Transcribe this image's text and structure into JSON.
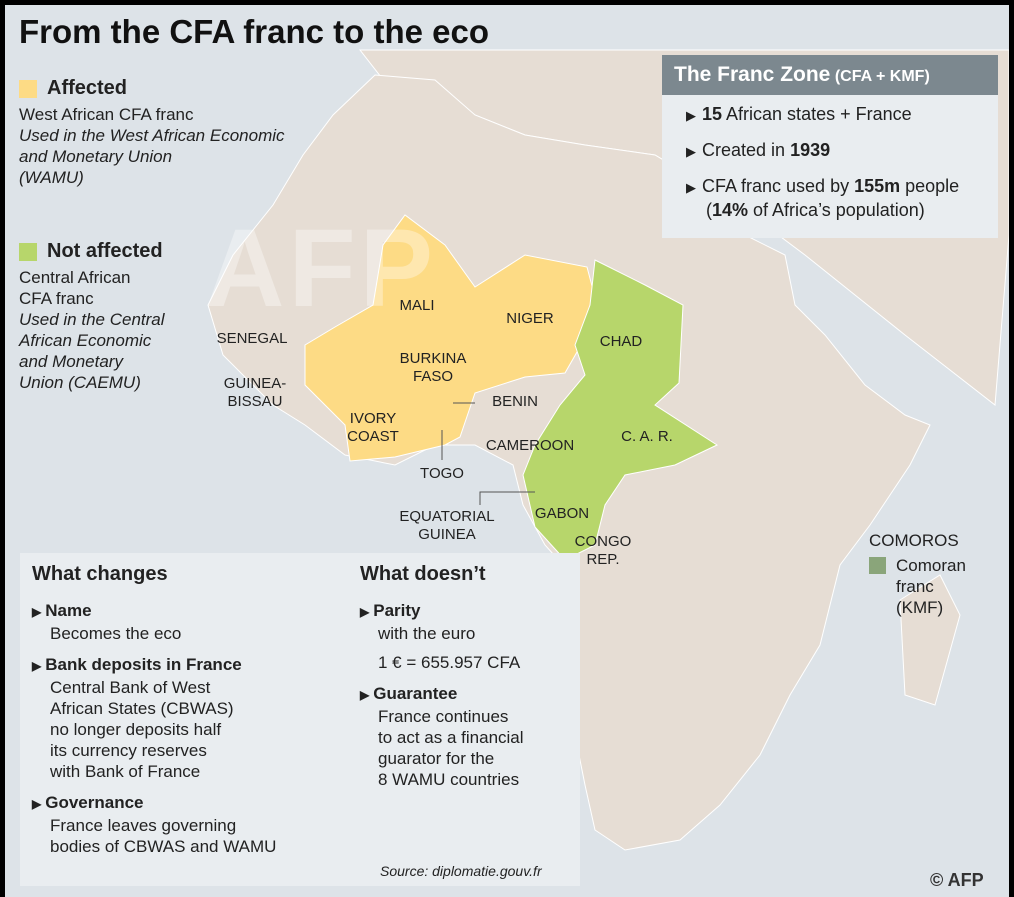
{
  "title": "From the CFA franc to the eco",
  "watermark": "AFP",
  "legend": [
    {
      "label": "Affected",
      "color": "#fddb85",
      "lines": [
        "West African CFA franc"
      ],
      "italic_lines": [
        "Used in the West African Economic",
        "and Monetary Union",
        "(WAMU)"
      ]
    },
    {
      "label": "Not affected",
      "color": "#b7d66b",
      "lines": [
        "Central African",
        "CFA franc"
      ],
      "italic_lines": [
        "Used in the Central",
        "African Economic",
        "and Monetary",
        "Union (CAEMU)"
      ]
    }
  ],
  "franc_zone": {
    "title": "The Franc Zone",
    "title_note": "(CFA + KMF)",
    "items": [
      [
        {
          "t": "15",
          "b": true
        },
        {
          "t": " African states + France",
          "b": false
        }
      ],
      [
        {
          "t": "Created in ",
          "b": false
        },
        {
          "t": "1939",
          "b": true
        }
      ],
      [
        {
          "t": "CFA franc used by ",
          "b": false
        },
        {
          "t": "155m",
          "b": true
        },
        {
          "t": " people",
          "b": false
        }
      ],
      [
        {
          "t": "(",
          "b": false
        },
        {
          "t": "14%",
          "b": true
        },
        {
          "t": " of Africa’s population)",
          "b": false
        }
      ]
    ]
  },
  "map": {
    "labels": [
      [
        "MALI"
      ],
      [
        "NIGER"
      ],
      [
        "SENEGAL"
      ],
      [
        "BURKINA",
        "FASO"
      ],
      [
        "GUINEA-",
        "BISSAU"
      ],
      [
        "IVORY",
        "COAST"
      ],
      [
        "BENIN"
      ],
      [
        "TOGO"
      ],
      [
        "CAMEROON"
      ],
      [
        "CHAD"
      ],
      [
        "C. A. R."
      ],
      [
        "GABON"
      ],
      [
        "EQUATORIAL",
        "GUINEA"
      ],
      [
        "CONGO",
        "REP."
      ]
    ]
  },
  "comoros": {
    "label": "COMOROS",
    "color": "#8aa57a",
    "legend_lines": [
      "Comoran",
      "franc",
      "(KMF)"
    ]
  },
  "what_changes": {
    "heading": "What changes",
    "items": [
      {
        "label": "Name",
        "lines": [
          "Becomes the eco"
        ]
      },
      {
        "label": "Bank deposits in France",
        "lines": [
          "Central Bank of West",
          "African States (CBWAS)",
          "no longer deposits half",
          "its currency reserves",
          "with Bank of France"
        ]
      },
      {
        "label": "Governance",
        "lines": [
          "France leaves governing",
          "bodies of CBWAS and WAMU"
        ]
      }
    ]
  },
  "what_doesnt": {
    "heading": "What doesn’t",
    "items": [
      {
        "label": "Parity",
        "lines": [
          "with the euro",
          "1 € = 655.957 CFA"
        ]
      },
      {
        "label": "Guarantee",
        "lines": [
          "France continues",
          "to act as a financial",
          "guarator for the",
          "8 WAMU countries"
        ]
      }
    ]
  },
  "source": "Source: diplomatie.gouv.fr",
  "credit": "© AFP"
}
